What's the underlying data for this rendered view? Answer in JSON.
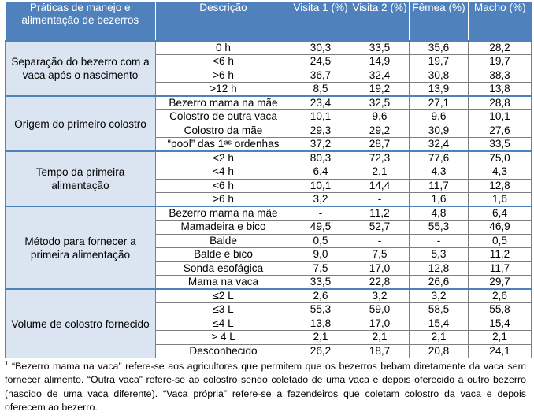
{
  "table": {
    "headers": [
      "Práticas de manejo e alimentação de bezerros",
      "Descrição",
      "Visita 1 (%)",
      "Visita 2 (%)",
      "Fêmea (%)",
      "Macho (%)"
    ],
    "groups": [
      {
        "label": "Separação do bezerro com a vaca após o nascimento",
        "rows": [
          [
            "0 h",
            "30,3",
            "33,5",
            "35,6",
            "28,2"
          ],
          [
            "<6 h",
            "24,5",
            "14,9",
            "19,7",
            "19,7"
          ],
          [
            ">6 h",
            "36,7",
            "32,4",
            "30,8",
            "38,3"
          ],
          [
            ">12 h",
            "8,5",
            "19,2",
            "13,9",
            "13,8"
          ]
        ]
      },
      {
        "label": "Origem do primeiro colostro",
        "rows": [
          [
            "Bezerro mama na mãe",
            "23,4",
            "32,5",
            "27,1",
            "28,8"
          ],
          [
            "Colostro de outra vaca",
            "10,1",
            "9,6",
            "9,6",
            "10,1"
          ],
          [
            "Colostro da mãe",
            "29,3",
            "29,2",
            "30,9",
            "27,6"
          ],
          [
            "“pool” das 1ᵃˢ ordenhas",
            "37,2",
            "28,7",
            "32,4",
            "33,5"
          ]
        ]
      },
      {
        "label": "Tempo da primeira alimentação",
        "rows": [
          [
            "<2 h",
            "80,3",
            "72,3",
            "77,6",
            "75,0"
          ],
          [
            "<4 h",
            "6,4",
            "2,1",
            "4,3",
            "4,3"
          ],
          [
            "<6 h",
            "10,1",
            "14,4",
            "11,7",
            "12,8"
          ],
          [
            ">6 h",
            "3,2",
            "-",
            "1,6",
            "1,6"
          ]
        ]
      },
      {
        "label": "Método para fornecer a primeira alimentação",
        "rows": [
          [
            "Bezerro mama na mãe",
            "-",
            "11,2",
            "4,8",
            "6,4"
          ],
          [
            "Mamadeira e bico",
            "49,5",
            "52,7",
            "55,3",
            "46,9"
          ],
          [
            "Balde",
            "0,5",
            "-",
            "-",
            "0,5"
          ],
          [
            "Balde e bico",
            "9,0",
            "7,5",
            "5,3",
            "11,2"
          ],
          [
            "Sonda esofágica",
            "7,5",
            "17,0",
            "12,8",
            "11,7"
          ],
          [
            "Mama na vaca",
            "33,5",
            "22,8",
            "26,6",
            "29,7"
          ]
        ]
      },
      {
        "label": "Volume de colostro fornecido",
        "rows": [
          [
            "≤2 L",
            "2,6",
            "3,2",
            "3,2",
            "2,6"
          ],
          [
            "≤3 L",
            "55,3",
            "59,0",
            "58,5",
            "55,8"
          ],
          [
            "≤4 L",
            "13,8",
            "17,0",
            "15,4",
            "15,4"
          ],
          [
            "> 4 L",
            "2,1",
            "2,1",
            "2,1",
            "2,1"
          ],
          [
            "Desconhecido",
            "26,2",
            "18,7",
            "20,8",
            "24,1"
          ]
        ]
      }
    ]
  },
  "footnote": {
    "marker": "1",
    "text": " “Bezerro mama na vaca” refere-se aos agricultores que permitem que os bezerros bebam diretamente da vaca sem fornecer alimento. “Outra vaca” refere-se ao colostro sendo coletado de uma vaca e depois oferecido a outro bezerro (nascido de uma vaca diferente). “Vaca própria” refere-se a fazendeiros que coletam colostro da vaca e depois oferecem ao bezerro."
  }
}
